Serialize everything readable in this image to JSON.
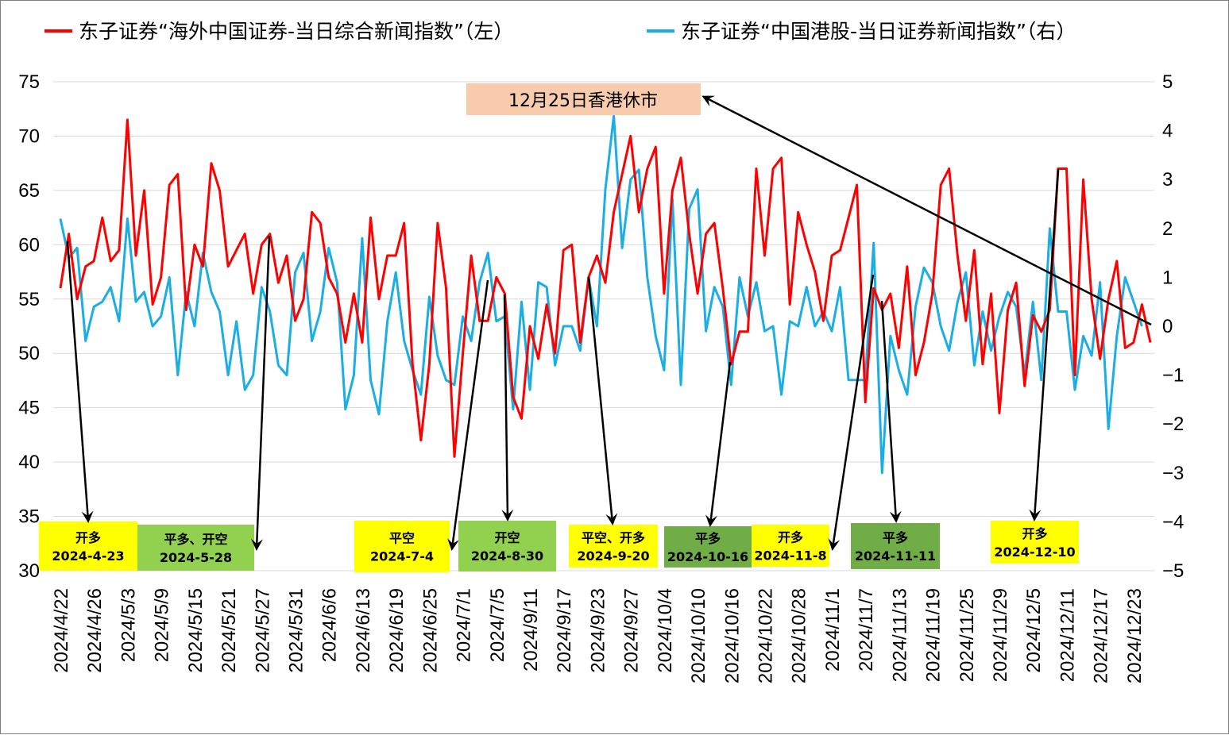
{
  "chart_data": {
    "type": "line",
    "title": "",
    "legend_position": "top",
    "grid": "horizontal",
    "series": [
      {
        "name": "东子证券“海外中国证券-当日综合新闻指数”（左）",
        "axis": "left",
        "color": "#ff0000",
        "values": [
          56,
          61,
          55,
          58,
          58.5,
          62.5,
          58.5,
          59.5,
          71.5,
          59,
          65,
          54.5,
          57,
          65.5,
          66.5,
          54,
          60,
          58,
          67.5,
          65,
          58,
          59.5,
          61,
          55.5,
          60,
          61,
          56.5,
          59,
          53,
          55,
          63,
          62,
          57,
          55.5,
          51,
          55.5,
          51,
          62.5,
          55,
          59,
          59,
          62,
          49,
          42,
          49,
          62,
          56,
          40.5,
          50,
          59,
          53,
          53,
          57,
          55.5,
          46,
          44,
          52.5,
          49.5,
          54.5,
          50,
          59.5,
          60,
          51,
          57,
          59,
          56.5,
          63,
          66.5,
          70,
          63,
          67,
          69,
          55.5,
          65,
          68,
          61,
          55.5,
          61,
          62,
          56,
          49,
          52,
          52,
          67,
          59,
          67,
          68,
          54.5,
          63,
          60,
          57.5,
          53,
          59,
          59.5,
          62.5,
          65.5,
          45.5,
          56,
          54,
          55.5,
          50.5,
          58,
          48,
          51,
          55.5,
          65.5,
          67,
          59,
          53,
          59.5,
          49,
          55.5,
          44.5,
          54,
          56.5,
          47,
          53.5,
          52,
          54,
          67,
          67,
          48,
          66,
          55,
          49.5,
          55,
          58.5,
          50.5,
          51,
          54.5,
          51
        ]
      },
      {
        "name": "东子证券“中国港股-当日证券新闻指数”（右）",
        "axis": "right",
        "color": "#1aaee5",
        "values": [
          2.2,
          1.4,
          1.6,
          -0.3,
          0.4,
          0.5,
          0.8,
          0.1,
          2.2,
          0.5,
          0.7,
          0,
          0.2,
          1,
          -1,
          0.7,
          0,
          1.5,
          0.7,
          0.3,
          -1,
          0.1,
          -1.3,
          -1,
          0.8,
          0.3,
          -0.8,
          -1,
          1.1,
          1.5,
          -0.3,
          0.3,
          1.6,
          0.9,
          -1.7,
          -1,
          1.8,
          -1.1,
          -1.8,
          0.1,
          1.1,
          -0.3,
          -0.9,
          -1.4,
          0.6,
          -0.6,
          -1.1,
          -1.2,
          0.2,
          -0.3,
          0.9,
          1.5,
          0.1,
          0.2,
          -1.7,
          0.5,
          -1.3,
          0.9,
          0.8,
          -0.8,
          0,
          0,
          -0.5,
          1,
          0,
          2.8,
          4.3,
          1.6,
          3,
          3.2,
          1,
          -0.2,
          -0.9,
          2.6,
          -1.2,
          2.4,
          2.8,
          -0.1,
          0.8,
          0.4,
          -1.2,
          1,
          0.2,
          0.9,
          -0.1,
          0,
          -1.4,
          0.1,
          0,
          0.8,
          0,
          0.3,
          -0.1,
          0.8,
          -1.1,
          -1.1,
          -1.1,
          1.7,
          -3,
          -0.2,
          -0.9,
          -1.4,
          0.4,
          1.2,
          0.9,
          0,
          -0.5,
          0.5,
          1.1,
          -0.8,
          0.3,
          -0.5,
          0.2,
          0.7,
          0.4,
          -1,
          0.5,
          -1.1,
          2,
          0.3,
          0.3,
          -1.3,
          -0.2,
          -0.6,
          0.9,
          -2.1,
          -0.2,
          1,
          0.5,
          0
        ]
      }
    ],
    "y_left": {
      "min": 30,
      "max": 75,
      "step": 5,
      "ticks": [
        "75",
        "70",
        "65",
        "60",
        "55",
        "50",
        "45",
        "40",
        "35",
        "30"
      ]
    },
    "y_right": {
      "min": -5,
      "max": 5,
      "step": 1,
      "ticks": [
        "5",
        "4",
        "3",
        "2",
        "1",
        "0",
        "−1",
        "−2",
        "−3",
        "−4",
        "−5"
      ]
    },
    "x_tick_labels": [
      "2024/4/22",
      "2024/4/26",
      "2024/5/3",
      "2024/5/9",
      "2024/5/15",
      "2024/5/21",
      "2024/5/27",
      "2024/5/31",
      "2024/6/6",
      "2024/6/13",
      "2024/6/19",
      "2024/6/25",
      "2024/7/1",
      "2024/7/5",
      "2024/9/11",
      "2024/9/17",
      "2024/9/23",
      "2024/9/27",
      "2024/10/4",
      "2024/10/10",
      "2024/10/16",
      "2024/10/22",
      "2024/10/28",
      "2024/11/1",
      "2024/11/7",
      "2024/11/13",
      "2024/11/19",
      "2024/11/25",
      "2024/11/29",
      "2024/12/5",
      "2024/12/11",
      "2024/12/17",
      "2024/12/23"
    ],
    "x_tick_index": [
      0,
      4,
      8,
      12,
      16,
      20,
      24,
      28,
      32,
      36,
      40,
      44,
      48,
      52,
      56,
      60,
      64,
      68,
      72,
      76,
      80,
      84,
      88,
      92,
      96,
      100,
      104,
      108,
      112,
      116,
      120,
      124,
      128
    ],
    "annotations": [
      {
        "line1": "开多",
        "line2": "2024-4-23",
        "bg": "#ffff00",
        "target_index": 1
      },
      {
        "line1": "平多、开空",
        "line2": "2024-5-28",
        "bg": "#92d050",
        "target_index": 25
      },
      {
        "line1": "平空",
        "line2": "2024-7-4",
        "bg": "#ffff00",
        "target_index": 51
      },
      {
        "line1": "开空",
        "line2": "2024-8-30",
        "bg": "#92d050",
        "target_index": 53
      },
      {
        "line1": "平空、开多",
        "line2": "2024-9-20",
        "bg": "#ffff00",
        "target_index": 63
      },
      {
        "line1": "平多",
        "line2": "2024-10-16",
        "bg": "#70ad47",
        "target_index": 80
      },
      {
        "line1": "开多",
        "line2": "2024-11-8",
        "bg": "#ffff00",
        "target_index": 97
      },
      {
        "line1": "平多",
        "line2": "2024-11-11",
        "bg": "#70ad47",
        "target_index": 98
      },
      {
        "line1": "开多",
        "line2": "2024-12-10",
        "bg": "#ffff00",
        "target_index": 119
      }
    ],
    "note": {
      "text": "12月25日香港休市",
      "bg": "#f8cbad",
      "target_index": 129
    }
  }
}
